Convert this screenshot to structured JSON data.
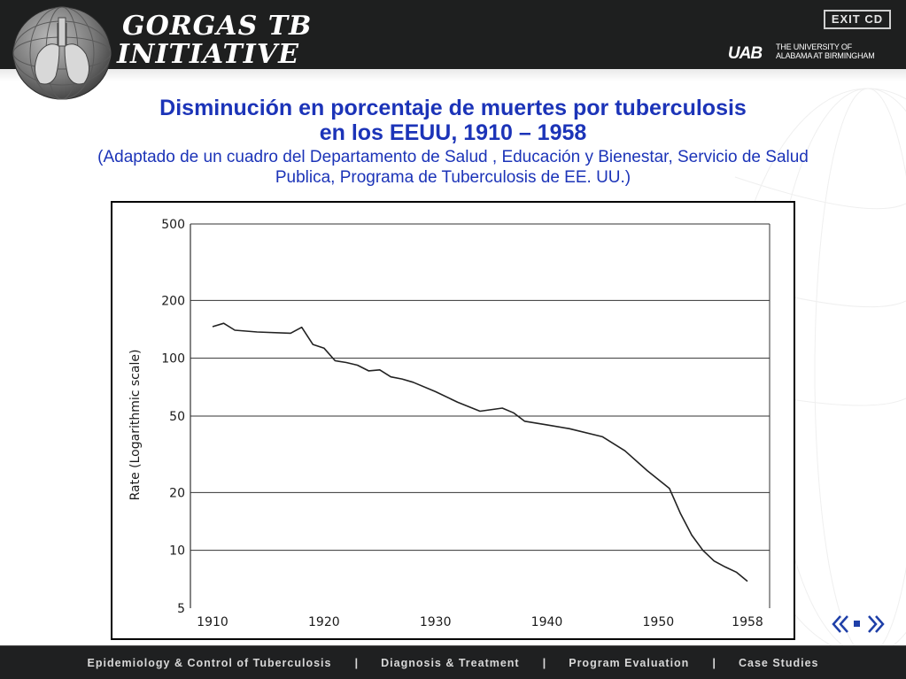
{
  "header": {
    "title_line1": "GORGAS TB",
    "title_line2": "INITIATIVE",
    "exit_label": "EXIT CD",
    "university_line1": "THE UNIVERSITY OF",
    "university_line2": "ALABAMA AT BIRMINGHAM",
    "logo_text": "UAB"
  },
  "slide": {
    "title_line1": "Disminución en porcentaje de muertes por tuberculosis",
    "title_line2": "en los EEUU, 1910 – 1958",
    "subtitle_line1": "(Adaptado de un cuadro del  Departamento de Salud , Educación y Bienestar, Servicio de Salud",
    "subtitle_line2": "Publica, Programa de Tuberculosis  de EE. UU.)"
  },
  "chart_data": {
    "type": "line",
    "title": "",
    "xlabel": "",
    "ylabel": "Rate (Logarithmic scale)",
    "yscale": "log",
    "ylim": [
      5,
      500
    ],
    "xlim": [
      1910,
      1958
    ],
    "x_ticks": [
      "1910",
      "1920",
      "1930",
      "1940",
      "1950",
      "1958"
    ],
    "x_tick_values": [
      1910,
      1920,
      1930,
      1940,
      1950,
      1958
    ],
    "y_ticks": [
      "500",
      "200",
      "100",
      "50",
      "20",
      "10",
      "5"
    ],
    "y_tick_values": [
      500,
      200,
      100,
      50,
      20,
      10,
      5
    ],
    "grid": "horizontal",
    "series": [
      {
        "x": [
          1910,
          1911,
          1912,
          1914,
          1917,
          1918,
          1919,
          1920,
          1921,
          1922,
          1923,
          1924,
          1925,
          1926,
          1927,
          1928,
          1930,
          1932,
          1934,
          1936,
          1937,
          1938,
          1940,
          1942,
          1945,
          1947,
          1949,
          1951,
          1952,
          1953,
          1954,
          1955,
          1956,
          1957,
          1958
        ],
        "values": [
          146,
          152,
          140,
          137,
          135,
          145,
          118,
          113,
          97,
          95,
          92,
          86,
          87,
          80,
          78,
          75,
          67,
          59,
          53,
          55,
          52,
          47,
          45,
          43,
          39,
          33,
          26,
          21,
          15.5,
          12,
          10,
          8.8,
          8.2,
          7.7,
          6.9
        ]
      }
    ]
  },
  "nav": {
    "prev_icon": "double-chevron-left-icon",
    "home_icon": "square-icon",
    "next_icon": "double-chevron-right-icon"
  },
  "footer": {
    "items": [
      "Epidemiology & Control of Tuberculosis",
      "Diagnosis & Treatment",
      "Program Evaluation",
      "Case Studies"
    ],
    "separator": "|"
  },
  "colors": {
    "header_bg": "#1e1f1f",
    "title_blue": "#1c34b8",
    "footer_bg": "#1f2021"
  }
}
